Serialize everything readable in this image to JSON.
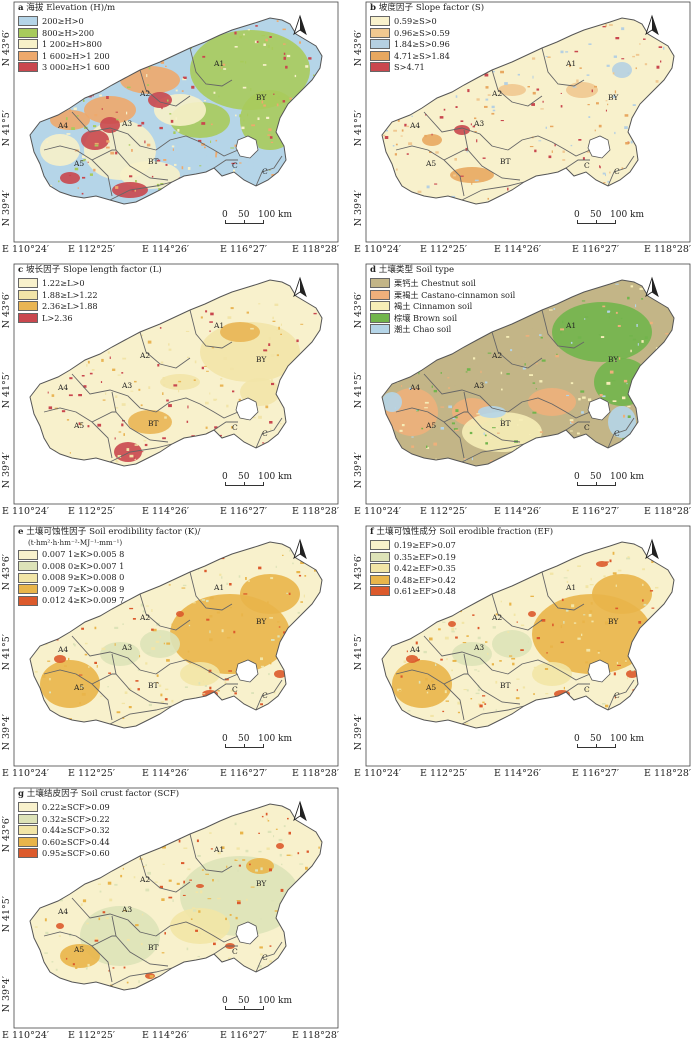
{
  "lat_labels": [
    "N 43°6′",
    "N 41°5′",
    "N 39°4′"
  ],
  "lon_labels": [
    "E 110°24′",
    "E 112°25′",
    "E 114°26′",
    "E 116°27′",
    "E 118°28′"
  ],
  "scale": {
    "t0": "0",
    "t1": "50",
    "t2": "100 km"
  },
  "region_labels": [
    "A1",
    "A2",
    "A3",
    "A4",
    "A5",
    "BT",
    "BY",
    "C",
    "C"
  ],
  "panels": [
    {
      "letter": "a",
      "title": "海拔 Elevation (H)/m",
      "subtitle": "",
      "legend": [
        {
          "label": "200≥H>0",
          "color": "#b5d5e8"
        },
        {
          "label": "800≥H>200",
          "color": "#a8cb5c"
        },
        {
          "label": "1 200≥H>800",
          "color": "#f7f1c9"
        },
        {
          "label": "1 600≥H>1 200",
          "color": "#eea96c"
        },
        {
          "label": "3 000≥H>1 600",
          "color": "#c9474e"
        }
      ]
    },
    {
      "letter": "b",
      "title": "坡度因子 Slope factor (S)",
      "subtitle": "",
      "legend": [
        {
          "label": "0.59≥S>0",
          "color": "#f8f1cc"
        },
        {
          "label": "0.96≥S>0.59",
          "color": "#f0c890"
        },
        {
          "label": "1.84≥S>0.96",
          "color": "#b5d0e2"
        },
        {
          "label": "4.71≥S>1.84",
          "color": "#e8a860"
        },
        {
          "label": "S>4.71",
          "color": "#c9474e"
        }
      ]
    },
    {
      "letter": "c",
      "title": "坡长因子 Slope length factor (L)",
      "subtitle": "",
      "legend": [
        {
          "label": "1.22≥L>0",
          "color": "#f8f1cc"
        },
        {
          "label": "1.88≥L>1.22",
          "color": "#f2e4a8"
        },
        {
          "label": "2.36≥L>1.88",
          "color": "#e9b554"
        },
        {
          "label": "L>2.36",
          "color": "#c9474e"
        }
      ]
    },
    {
      "letter": "d",
      "title": "土壤类型 Soil type",
      "subtitle": "",
      "legend": [
        {
          "label": "栗钙土 Chestnut soil",
          "color": "#c3b587"
        },
        {
          "label": "栗褐土 Castano-cinnamon soil",
          "color": "#eeb07b"
        },
        {
          "label": "褐土 Cinnamon soil",
          "color": "#f6edb7"
        },
        {
          "label": "棕壤 Brown soil",
          "color": "#72b54c"
        },
        {
          "label": "潮土 Chao soil",
          "color": "#b5d5e8"
        }
      ]
    },
    {
      "letter": "e",
      "title": "土壤可蚀性因子 Soil erodibility factor (K)/",
      "subtitle": "(t·hm²·h·hm⁻²·MJ⁻¹·mm⁻¹)",
      "legend": [
        {
          "label": "0.007 1≥K>0.005 8",
          "color": "#f8f1cc"
        },
        {
          "label": "0.008 0≥K>0.007 1",
          "color": "#dde3b8"
        },
        {
          "label": "0.008 9≥K>0.008 0",
          "color": "#f2e5a6"
        },
        {
          "label": "0.009 7≥K>0.008 9",
          "color": "#e9b54a"
        },
        {
          "label": "0.012 4≥K>0.009 7",
          "color": "#dc5a2c"
        }
      ]
    },
    {
      "letter": "f",
      "title": "土壤可蚀性成分 Soil erodible fraction (EF)",
      "subtitle": "",
      "legend": [
        {
          "label": "0.19≥EF>0.07",
          "color": "#f8f1cc"
        },
        {
          "label": "0.35≥EF>0.19",
          "color": "#dde3b8"
        },
        {
          "label": "0.42≥EF>0.35",
          "color": "#f2e5a6"
        },
        {
          "label": "0.48≥EF>0.42",
          "color": "#e9b54a"
        },
        {
          "label": "0.61≥EF>0.48",
          "color": "#dc5a2c"
        }
      ]
    },
    {
      "letter": "g",
      "title": "土壤结皮因子 Soil crust factor (SCF)",
      "subtitle": "",
      "legend": [
        {
          "label": "0.22≥SCF>0.09",
          "color": "#f8f1cc"
        },
        {
          "label": "0.32≥SCF>0.22",
          "color": "#dde3b8"
        },
        {
          "label": "0.44≥SCF>0.32",
          "color": "#f2e5a6"
        },
        {
          "label": "0.60≥SCF>0.44",
          "color": "#e9b54a"
        },
        {
          "label": "0.95≥SCF>0.60",
          "color": "#dc5a2c"
        }
      ]
    }
  ]
}
